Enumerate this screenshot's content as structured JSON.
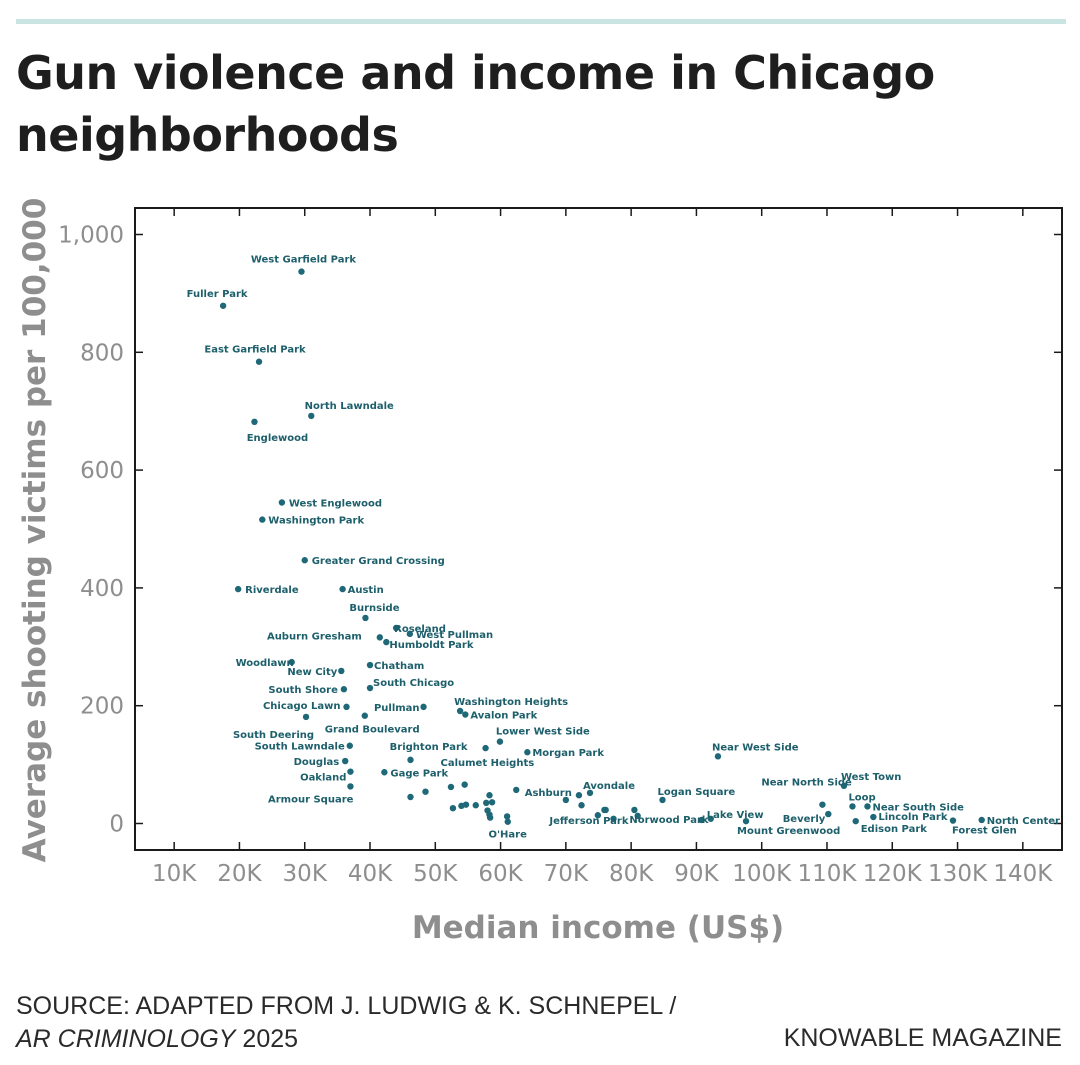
{
  "header": {
    "title": "Gun violence and income in Chicago neighborhoods"
  },
  "footer": {
    "source_prefix": "SOURCE: ADAPTED FROM J. LUDWIG & K. SCHNEPEL /",
    "source_journal": "AR CRIMINOLOGY",
    "source_year": " 2025",
    "brand": "KNOWABLE MAGAZINE"
  },
  "colors": {
    "point": "#1e6878",
    "label": "#1d5f6b",
    "axis_text": "#8e8e8e",
    "rule": "#c9e4e2"
  },
  "chart_data": {
    "type": "scatter",
    "title": "Gun violence and income in Chicago neighborhoods",
    "xlabel": "Median income (US$)",
    "ylabel": "Average shooting victims per 100,000",
    "xlim": [
      4000,
      146000
    ],
    "ylim": [
      -45,
      1045
    ],
    "xticks": [
      10000,
      20000,
      30000,
      40000,
      50000,
      60000,
      70000,
      80000,
      90000,
      100000,
      110000,
      120000,
      130000,
      140000
    ],
    "xtick_labels": [
      "10K",
      "20K",
      "30K",
      "40K",
      "50K",
      "60K",
      "70K",
      "80K",
      "90K",
      "100K",
      "110K",
      "120K",
      "130K",
      "140K"
    ],
    "yticks": [
      0,
      200,
      400,
      600,
      800,
      1000
    ],
    "ytick_labels": [
      "0",
      "200",
      "400",
      "600",
      "800",
      "1,000"
    ],
    "points": [
      {
        "name": "West Garfield Park",
        "x": 29500,
        "y": 937
      },
      {
        "name": "Fuller Park",
        "x": 17500,
        "y": 879
      },
      {
        "name": "East Garfield Park",
        "x": 23000,
        "y": 784
      },
      {
        "name": "North Lawndale",
        "x": 31000,
        "y": 692
      },
      {
        "name": "Englewood",
        "x": 22300,
        "y": 682
      },
      {
        "name": "West Englewood",
        "x": 26500,
        "y": 545
      },
      {
        "name": "Washington Park",
        "x": 23500,
        "y": 516
      },
      {
        "name": "Greater Grand Crossing",
        "x": 30000,
        "y": 447
      },
      {
        "name": "Riverdale",
        "x": 19800,
        "y": 398
      },
      {
        "name": "Austin",
        "x": 35800,
        "y": 398
      },
      {
        "name": "Burnside",
        "x": 39300,
        "y": 349
      },
      {
        "name": "Roseland",
        "x": 44000,
        "y": 332
      },
      {
        "name": "West Pullman",
        "x": 46100,
        "y": 322
      },
      {
        "name": "Auburn Gresham",
        "x": 41500,
        "y": 316
      },
      {
        "name": "Humboldt Park",
        "x": 42500,
        "y": 308
      },
      {
        "name": "Woodlawn",
        "x": 28000,
        "y": 274
      },
      {
        "name": "Chatham",
        "x": 40000,
        "y": 269
      },
      {
        "name": "New City",
        "x": 35600,
        "y": 259
      },
      {
        "name": "South Shore",
        "x": 36000,
        "y": 228
      },
      {
        "name": "South Chicago",
        "x": 40000,
        "y": 230
      },
      {
        "name": "Chicago Lawn",
        "x": 36400,
        "y": 198
      },
      {
        "name": "Pullman",
        "x": 48200,
        "y": 198
      },
      {
        "name": "Washington Heights",
        "x": 53800,
        "y": 191
      },
      {
        "name": "Avalon Park",
        "x": 54600,
        "y": 185
      },
      {
        "name": "South Deering",
        "x": 30200,
        "y": 181
      },
      {
        "name": "Grand Boulevard",
        "x": 39200,
        "y": 183
      },
      {
        "name": "Lower West Side",
        "x": 59900,
        "y": 139
      },
      {
        "name": "South Lawndale",
        "x": 36900,
        "y": 132
      },
      {
        "name": "Brighton Park",
        "x": 57700,
        "y": 128
      },
      {
        "name": "Morgan Park",
        "x": 64100,
        "y": 121
      },
      {
        "name": "Near West Side",
        "x": 93300,
        "y": 114
      },
      {
        "name": "Calumet Heights",
        "x": 46200,
        "y": 108
      },
      {
        "name": "Douglas",
        "x": 36200,
        "y": 106
      },
      {
        "name": "Oakland",
        "x": 37000,
        "y": 88
      },
      {
        "name": "Gage Park",
        "x": 42200,
        "y": 87
      },
      {
        "name": "West Town",
        "x": 112600,
        "y": 64
      },
      {
        "name": "Armour Square",
        "x": 37000,
        "y": 63
      },
      {
        "name": "Avondale",
        "x": 73700,
        "y": 52
      },
      {
        "name": "Ashburn",
        "x": 70000,
        "y": 40
      },
      {
        "name": "Logan Square",
        "x": 84800,
        "y": 40
      },
      {
        "name": "Near North Side",
        "x": 109300,
        "y": 32
      },
      {
        "name": "Loop",
        "x": 113900,
        "y": 29
      },
      {
        "name": "Near South Side",
        "x": 116200,
        "y": 29
      },
      {
        "name": "Lake View",
        "x": 92200,
        "y": 8
      },
      {
        "name": "Beverly",
        "x": 110200,
        "y": 16
      },
      {
        "name": "Lincoln Park",
        "x": 117100,
        "y": 11
      },
      {
        "name": "North Center",
        "x": 133700,
        "y": 6
      },
      {
        "name": "O'Hare",
        "x": 58300,
        "y": 15
      },
      {
        "name": "Jefferson Park",
        "x": 75900,
        "y": 23
      },
      {
        "name": "Norwood Park",
        "x": 80500,
        "y": 23
      },
      {
        "name": "Mount Greenwood",
        "x": 97600,
        "y": 4
      },
      {
        "name": "Edison Park",
        "x": 114400,
        "y": 4
      },
      {
        "name": "Forest Glen",
        "x": 129300,
        "y": 5
      }
    ],
    "unlabeled_points": [
      {
        "x": 46200,
        "y": 45
      },
      {
        "x": 48500,
        "y": 54
      },
      {
        "x": 52400,
        "y": 62
      },
      {
        "x": 54500,
        "y": 66
      },
      {
        "x": 52700,
        "y": 26
      },
      {
        "x": 54000,
        "y": 30
      },
      {
        "x": 54700,
        "y": 32
      },
      {
        "x": 56200,
        "y": 31
      },
      {
        "x": 57800,
        "y": 35
      },
      {
        "x": 58300,
        "y": 48
      },
      {
        "x": 58700,
        "y": 36
      },
      {
        "x": 58000,
        "y": 22
      },
      {
        "x": 58400,
        "y": 10
      },
      {
        "x": 61000,
        "y": 12
      },
      {
        "x": 61100,
        "y": 3
      },
      {
        "x": 62400,
        "y": 57
      },
      {
        "x": 72000,
        "y": 48
      },
      {
        "x": 72400,
        "y": 31
      },
      {
        "x": 74900,
        "y": 14
      },
      {
        "x": 76100,
        "y": 23
      },
      {
        "x": 77300,
        "y": 8
      },
      {
        "x": 81000,
        "y": 13
      },
      {
        "x": 90800,
        "y": 6
      }
    ]
  }
}
